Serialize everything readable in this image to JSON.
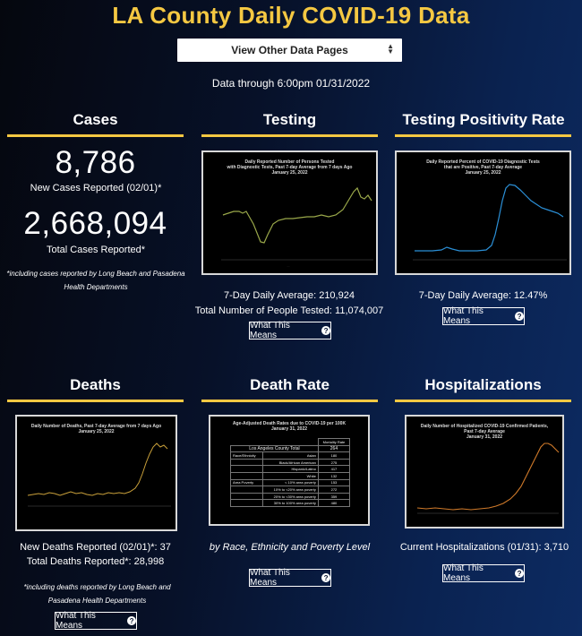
{
  "page": {
    "title": "LA County Daily COVID-19 Data",
    "select_value": "View Other Data Pages",
    "data_through": "Data through 6:00pm 01/31/2022"
  },
  "cases": {
    "title": "Cases",
    "new_cases": "8,786",
    "new_cases_label": "New Cases Reported (02/01)*",
    "total_cases": "2,668,094",
    "total_cases_label": "Total Cases Reported*",
    "footnote_line1": "*including cases reported by Long Beach and Pasadena",
    "footnote_line2": "Health Departments"
  },
  "testing": {
    "title": "Testing",
    "chart_title_1": "Daily Reported Number of Persons Tested",
    "chart_title_2": "with Diagnostic Tests, Past 7-day Average from 7 days Ago",
    "chart_title_3": "January 25, 2022",
    "avg": "7-Day Daily Average: 210,924",
    "total": "Total Number of People Tested: 11,074,007",
    "button": "What This Means"
  },
  "positivity": {
    "title": "Testing Positivity Rate",
    "chart_title_1": "Daily Reported Percent of COVID-19 Diagnostic Tests",
    "chart_title_2": "that are Positive, Past 7-day Average",
    "chart_title_3": "January 25, 2022",
    "avg": "7-Day Daily Average: 12.47%",
    "button": "What This Means"
  },
  "deaths": {
    "title": "Deaths",
    "chart_title_1": "Daily Number of Deaths, Past 7-day Average from 7 days Ago",
    "chart_title_2": "January 25, 2022",
    "new": "New Deaths Reported (02/01)*: 37",
    "total": "Total Deaths Reported*: 28,998",
    "footnote_line1": "*including deaths reported by Long Beach and",
    "footnote_line2": "Pasadena Health Departments",
    "button": "What This Means"
  },
  "death_rate": {
    "title": "Death Rate",
    "chart_title_1": "Age-Adjusted Death Rates due to COVID-19 per 100K",
    "chart_title_2": "January 31, 2022",
    "table_header": "Mortality Rate",
    "county_label": "Los Angeles County Total",
    "county_value": "264",
    "rows": [
      {
        "group": "Race/Ethnicity",
        "label": "Asian",
        "value": "180"
      },
      {
        "group": "",
        "label": "Black/African American",
        "value": "275"
      },
      {
        "group": "",
        "label": "Hispanic/Latino",
        "value": "417"
      },
      {
        "group": "",
        "label": "White",
        "value": "132"
      },
      {
        "group": "Area Poverty",
        "label": "< 10% area poverty",
        "value": "153"
      },
      {
        "group": "",
        "label": "10% to <20% area poverty",
        "value": "272"
      },
      {
        "group": "",
        "label": "20% to <30% area poverty",
        "value": "359"
      },
      {
        "group": "",
        "label": "30% to 100% area poverty",
        "value": "480"
      }
    ],
    "caption": "by Race, Ethnicity and Poverty Level",
    "button": "What This Means"
  },
  "hospitalizations": {
    "title": "Hospitalizations",
    "chart_title_1": "Daily Number of Hospitalized COVID-19 Confirmed Patients,",
    "chart_title_2": "Past 7-day Average",
    "chart_title_3": "January 31, 2022",
    "current": "Current Hospitalizations (01/31): 3,710",
    "button": "What This Means"
  },
  "colors": {
    "accent": "#f5c842",
    "testing_line": "#9aa84a",
    "positivity_line": "#2b8fd6",
    "deaths_line": "#c9a03a",
    "hosp_line": "#d07a2a"
  }
}
